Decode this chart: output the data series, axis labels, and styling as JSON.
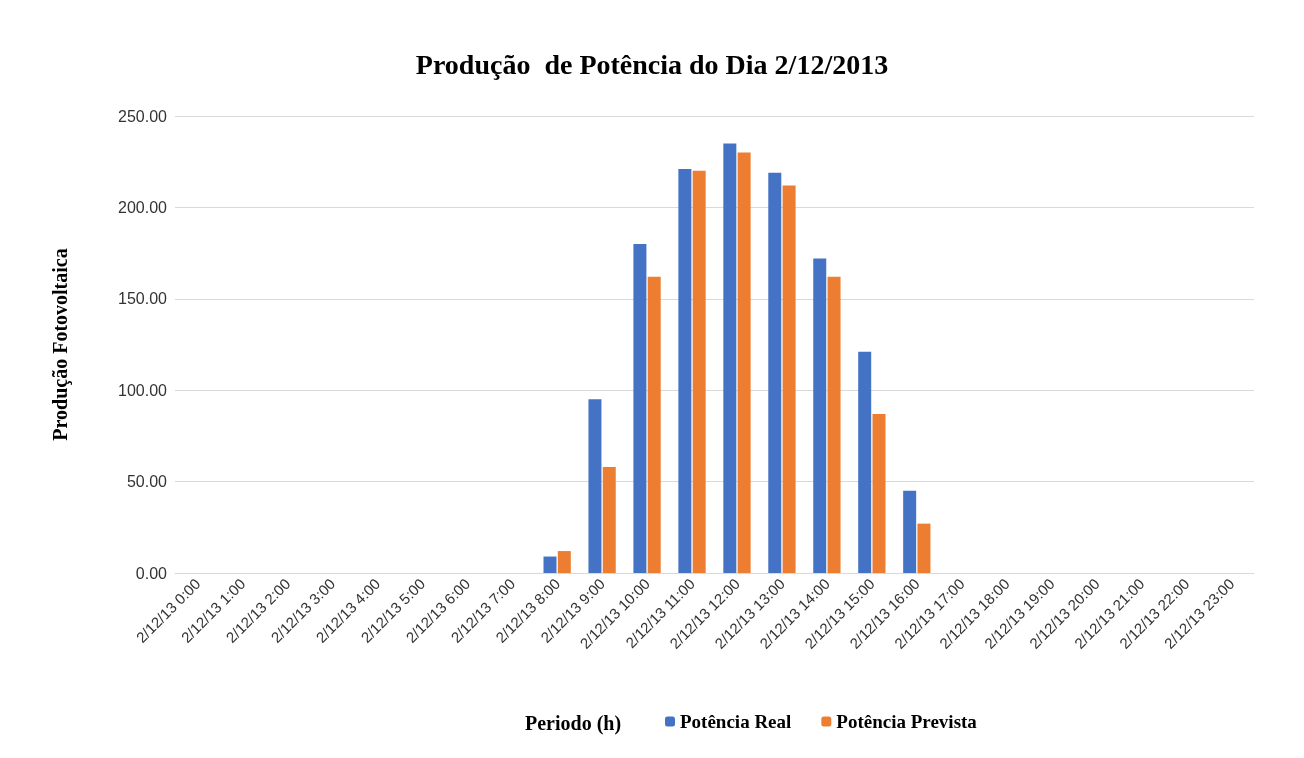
{
  "chart_data": {
    "type": "bar",
    "title": "Produção  de Potência do Dia 2/12/2013",
    "xlabel": "Periodo (h)",
    "ylabel": "Produção Fotovoltaica",
    "categories": [
      "2/12/13 0:00",
      "2/12/13 1:00",
      "2/12/13 2:00",
      "2/12/13 3:00",
      "2/12/13 4:00",
      "2/12/13 5:00",
      "2/12/13 6:00",
      "2/12/13 7:00",
      "2/12/13 8:00",
      "2/12/13 9:00",
      "2/12/13 10:00",
      "2/12/13 11:00",
      "2/12/13 12:00",
      "2/12/13 13:00",
      "2/12/13 14:00",
      "2/12/13 15:00",
      "2/12/13 16:00",
      "2/12/13 17:00",
      "2/12/13 18:00",
      "2/12/13 19:00",
      "2/12/13 20:00",
      "2/12/13 21:00",
      "2/12/13 22:00",
      "2/12/13 23:00"
    ],
    "series": [
      {
        "name": "Potência Real",
        "color": "#4472c4",
        "values": [
          0,
          0,
          0,
          0,
          0,
          0,
          0,
          0,
          9,
          95,
          180,
          221,
          235,
          219,
          172,
          121,
          45,
          0,
          0,
          0,
          0,
          0,
          0,
          0
        ]
      },
      {
        "name": "Potência Prevista",
        "color": "#ed7d31",
        "values": [
          0,
          0,
          0,
          0,
          0,
          0,
          0,
          0,
          12,
          58,
          162,
          220,
          230,
          212,
          162,
          87,
          27,
          0,
          0,
          0,
          0,
          0,
          0,
          0
        ]
      }
    ],
    "ylim": [
      0,
      250
    ],
    "yticks": [
      {
        "value": 0,
        "label": "0.00"
      },
      {
        "value": 50,
        "label": "50.00"
      },
      {
        "value": 100,
        "label": "100.00"
      },
      {
        "value": 150,
        "label": "150.00"
      },
      {
        "value": 200,
        "label": "200.00"
      },
      {
        "value": 250,
        "label": "250.00"
      }
    ],
    "grid": "y",
    "legend": "bottom"
  }
}
